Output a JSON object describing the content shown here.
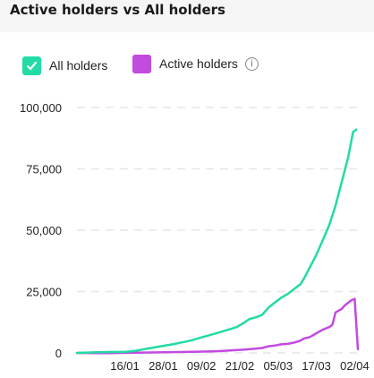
{
  "title": "Active holders vs All holders",
  "legend": {
    "all": {
      "label": "All holders",
      "color": "#22dba5"
    },
    "active": {
      "label": "Active holders",
      "color": "#c24be0"
    },
    "info_icon": "info-icon"
  },
  "chart_data": {
    "type": "line",
    "title": "Active holders vs All holders",
    "xlabel": "",
    "ylabel": "",
    "ylim": [
      0,
      100000
    ],
    "grid": true,
    "legend_placement": "top-left",
    "x_ticks": [
      "16/01",
      "28/01",
      "09/02",
      "21/02",
      "05/03",
      "17/03",
      "02/04"
    ],
    "y_ticks": [
      "0",
      "25,000",
      "50,000",
      "75,000",
      "100,000"
    ],
    "y_tick_values": [
      0,
      25000,
      50000,
      75000,
      100000
    ],
    "x_day_range": [
      -8,
      80
    ],
    "x_tick_days": [
      7,
      19,
      31,
      43,
      55,
      67,
      79
    ],
    "series": [
      {
        "name": "All holders",
        "color": "#22dba5",
        "points": [
          [
            -8,
            0
          ],
          [
            -2,
            300
          ],
          [
            4,
            400
          ],
          [
            7,
            400
          ],
          [
            10,
            800
          ],
          [
            13,
            1500
          ],
          [
            16,
            2200
          ],
          [
            19,
            2900
          ],
          [
            22,
            3500
          ],
          [
            25,
            4300
          ],
          [
            28,
            5200
          ],
          [
            31,
            6300
          ],
          [
            34,
            7400
          ],
          [
            37,
            8500
          ],
          [
            40,
            9700
          ],
          [
            42,
            10500
          ],
          [
            44,
            12000
          ],
          [
            46,
            13800
          ],
          [
            48,
            14500
          ],
          [
            50,
            15500
          ],
          [
            52,
            18500
          ],
          [
            54,
            20500
          ],
          [
            56,
            22500
          ],
          [
            58,
            24000
          ],
          [
            60,
            26000
          ],
          [
            62,
            28000
          ],
          [
            63,
            30000
          ],
          [
            65,
            35000
          ],
          [
            67,
            40000
          ],
          [
            69,
            46000
          ],
          [
            71,
            52000
          ],
          [
            73,
            60000
          ],
          [
            75,
            70000
          ],
          [
            77,
            80000
          ],
          [
            78.5,
            90000
          ],
          [
            79.5,
            91000
          ]
        ]
      },
      {
        "name": "Active holders",
        "color": "#c24be0",
        "points": [
          [
            -8,
            0
          ],
          [
            0,
            -100
          ],
          [
            10,
            100
          ],
          [
            20,
            300
          ],
          [
            30,
            500
          ],
          [
            36,
            700
          ],
          [
            40,
            1000
          ],
          [
            44,
            1300
          ],
          [
            46,
            1500
          ],
          [
            50,
            2000
          ],
          [
            52,
            2700
          ],
          [
            54,
            3000
          ],
          [
            56,
            3500
          ],
          [
            58,
            3700
          ],
          [
            60,
            4200
          ],
          [
            62,
            5000
          ],
          [
            63,
            5800
          ],
          [
            65,
            6500
          ],
          [
            67,
            8000
          ],
          [
            69,
            9500
          ],
          [
            71,
            10500
          ],
          [
            72,
            11500
          ],
          [
            73,
            16500
          ],
          [
            75,
            18000
          ],
          [
            76,
            19500
          ],
          [
            78,
            21500
          ],
          [
            79,
            22000
          ],
          [
            80,
            1500
          ]
        ]
      }
    ]
  }
}
